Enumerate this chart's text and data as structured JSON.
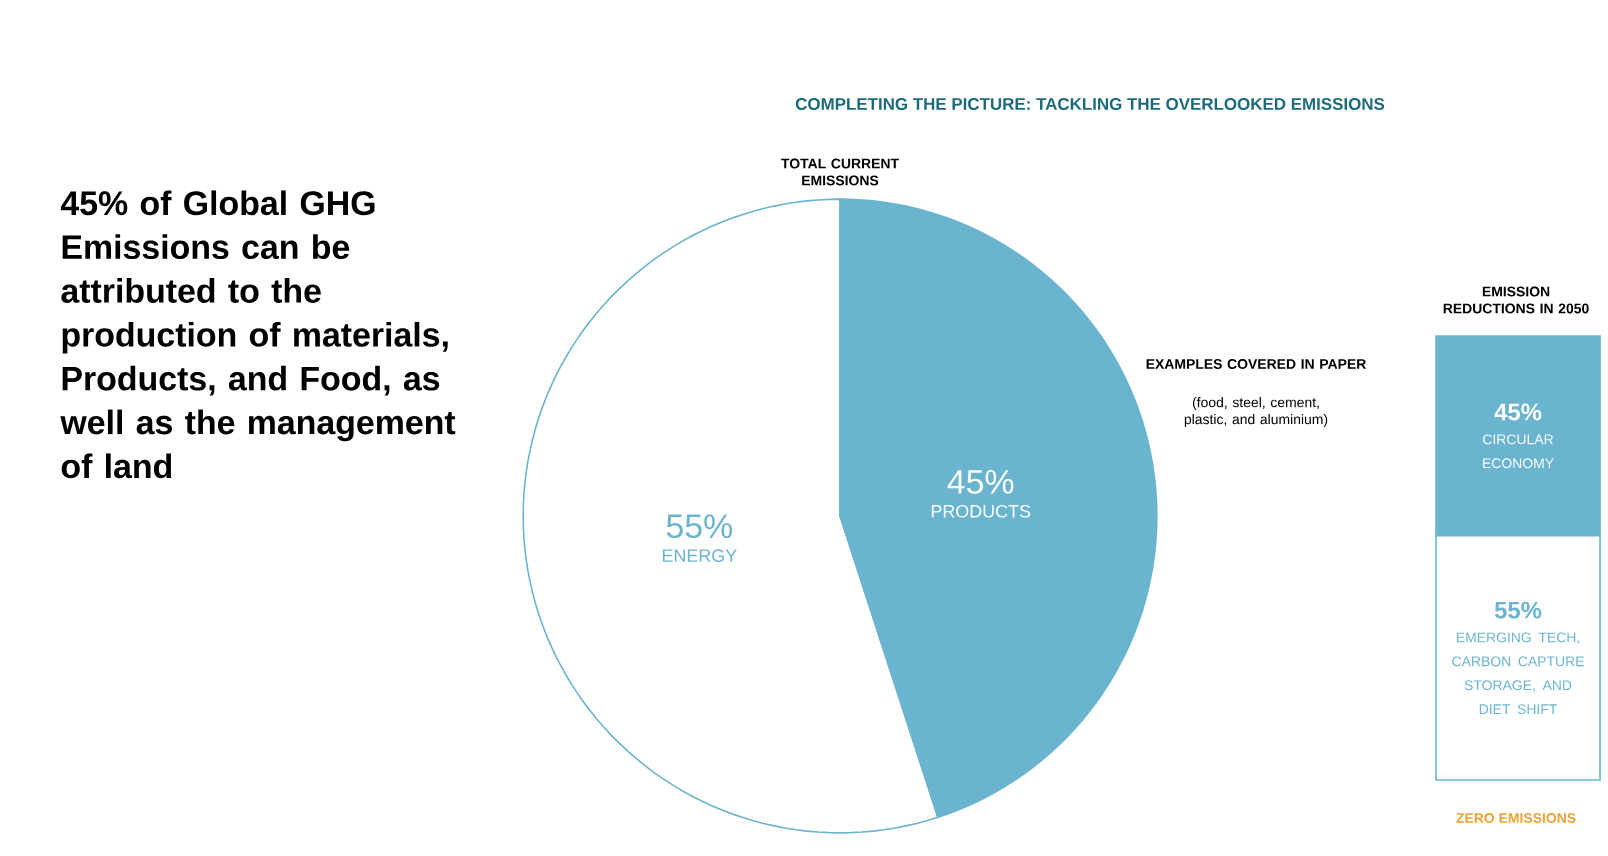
{
  "chart_data": [
    {
      "type": "pie",
      "title": "COMPLETING THE PICTURE: TACKLING THE OVERLOOKED EMISSIONS",
      "subtitle": "TOTAL CURRENT EMISSIONS",
      "categories": [
        "ENERGY",
        "PRODUCTS"
      ],
      "values": [
        55,
        45
      ],
      "value_labels": [
        "55%",
        "45%"
      ],
      "colors": [
        "#ffffff",
        "#6ab4cf"
      ],
      "annotations": [
        "45% of Global GHG Emissions can be attributed to the production of materials, Products, and Food, as well as the management of land",
        "EXAMPLES COVERED IN PAPER",
        "(food, steel, cement, plastic, and aluminium)"
      ]
    },
    {
      "type": "bar",
      "stacked": true,
      "title": "EMISSION REDUCTIONS IN 2050",
      "categories": [
        null
      ],
      "series": [
        {
          "name": "EMERGING TECH, CARBON CAPTURE STORAGE, AND DIET SHIFT",
          "color": "#ffffff",
          "values": [
            55
          ],
          "value_labels": [
            "55%"
          ]
        },
        {
          "name": "CIRCULAR ECONOMY",
          "color": "#6ab4cf",
          "values": [
            45
          ],
          "value_labels": [
            "45%"
          ]
        }
      ],
      "annotations": [
        "ZERO EMISSIONS"
      ]
    }
  ]
}
